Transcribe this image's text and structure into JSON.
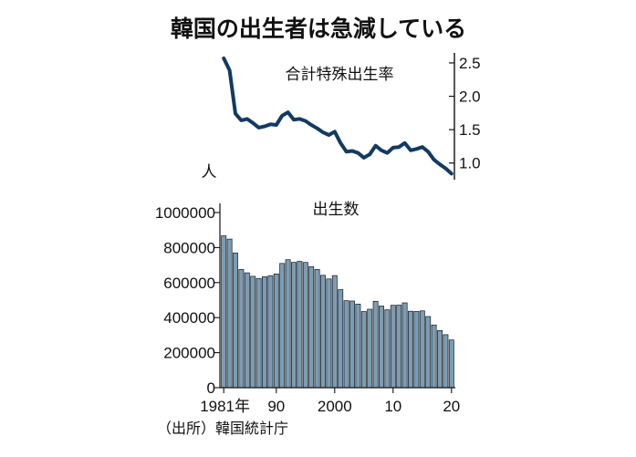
{
  "title": "韓国の出生者は急減している",
  "source": "（出所）韓国統計庁",
  "chart_data": [
    {
      "type": "line",
      "label": "合計特殊出生率",
      "x": [
        1981,
        1982,
        1983,
        1984,
        1985,
        1986,
        1987,
        1988,
        1989,
        1990,
        1991,
        1992,
        1993,
        1994,
        1995,
        1996,
        1997,
        1998,
        1999,
        2000,
        2001,
        2002,
        2003,
        2004,
        2005,
        2006,
        2007,
        2008,
        2009,
        2010,
        2011,
        2012,
        2013,
        2014,
        2015,
        2016,
        2017,
        2018,
        2019,
        2020
      ],
      "values": [
        2.57,
        2.39,
        1.74,
        1.64,
        1.66,
        1.6,
        1.53,
        1.55,
        1.58,
        1.57,
        1.71,
        1.76,
        1.65,
        1.66,
        1.63,
        1.57,
        1.52,
        1.46,
        1.42,
        1.47,
        1.3,
        1.17,
        1.18,
        1.15,
        1.08,
        1.13,
        1.26,
        1.19,
        1.15,
        1.23,
        1.24,
        1.3,
        1.19,
        1.21,
        1.24,
        1.17,
        1.05,
        0.98,
        0.92,
        0.84
      ],
      "y_ticks": [
        "2.5",
        "2.0",
        "1.5",
        "1.0"
      ],
      "y_tick_values": [
        2.5,
        2.0,
        1.5,
        1.0
      ],
      "ylim": [
        0.75,
        2.65
      ],
      "color": "#123a63"
    },
    {
      "type": "bar",
      "label": "出生数",
      "unit": "人",
      "x": [
        1981,
        1982,
        1983,
        1984,
        1985,
        1986,
        1987,
        1988,
        1989,
        1990,
        1991,
        1992,
        1993,
        1994,
        1995,
        1996,
        1997,
        1998,
        1999,
        2000,
        2001,
        2002,
        2003,
        2004,
        2005,
        2006,
        2007,
        2008,
        2009,
        2010,
        2011,
        2012,
        2013,
        2014,
        2015,
        2016,
        2017,
        2018,
        2019,
        2020
      ],
      "values": [
        867409,
        848312,
        769155,
        674793,
        655489,
        636019,
        623831,
        633092,
        639431,
        649738,
        709275,
        730678,
        715826,
        721185,
        715020,
        691226,
        675394,
        641594,
        620668,
        640089,
        559934,
        496911,
        495036,
        476958,
        435031,
        448153,
        493189,
        465892,
        444849,
        470171,
        471265,
        484550,
        436455,
        435435,
        438420,
        406243,
        357771,
        326822,
        302676,
        272337
      ],
      "y_ticks": [
        "1000000",
        "800000",
        "600000",
        "400000",
        "200000",
        "0"
      ],
      "y_tick_values": [
        1000000,
        800000,
        600000,
        400000,
        200000,
        0
      ],
      "ylim": [
        0,
        1000000
      ],
      "x_ticks": [
        "1981年",
        "90",
        "2000",
        "10",
        "20"
      ],
      "x_tick_years": [
        1981,
        1990,
        2000,
        2010,
        2020
      ],
      "bar_color": "#7b9cb4",
      "bar_edge": "#1a1a1a"
    }
  ]
}
